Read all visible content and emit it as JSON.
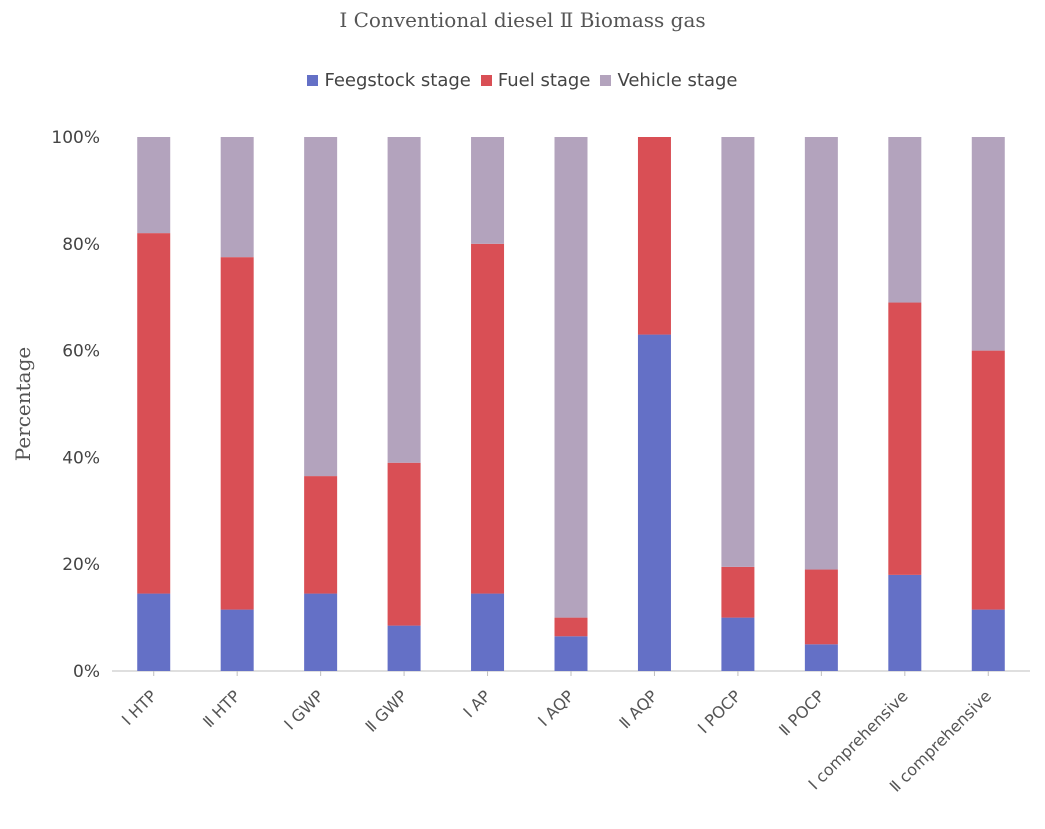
{
  "chart_data": {
    "type": "bar",
    "stacked": true,
    "title": "Ⅰ Conventional diesel Ⅱ Biomass gas",
    "ylabel": "Percentage",
    "xlabel": "",
    "ylim": [
      0,
      100
    ],
    "yticks": [
      "0%",
      "20%",
      "40%",
      "60%",
      "80%",
      "100%"
    ],
    "grid": false,
    "legend_position": "top-center",
    "categories": [
      "Ⅰ HTP",
      "Ⅱ HTP",
      "Ⅰ GWP",
      "Ⅱ GWP",
      "Ⅰ AP",
      "Ⅰ AQP",
      "Ⅱ AQP",
      "Ⅰ POCP",
      "Ⅱ POCP",
      "Ⅰ comprehensive",
      "Ⅱ comprehensive"
    ],
    "series": [
      {
        "name": "Feegstock stage",
        "color": "#6470c6",
        "values": [
          14.5,
          11.5,
          14.5,
          8.5,
          14.5,
          6.5,
          63,
          10,
          5,
          18,
          11.5
        ]
      },
      {
        "name": "Fuel stage",
        "color": "#d94f55",
        "values": [
          67.5,
          66,
          22,
          30.5,
          65.5,
          3.5,
          37,
          9.5,
          14,
          51,
          48.5
        ]
      },
      {
        "name": "Vehicle stage",
        "color": "#b3a3bd",
        "values": [
          18,
          22.5,
          63.5,
          61,
          20,
          90,
          0,
          80.5,
          81,
          31,
          40
        ]
      }
    ]
  }
}
